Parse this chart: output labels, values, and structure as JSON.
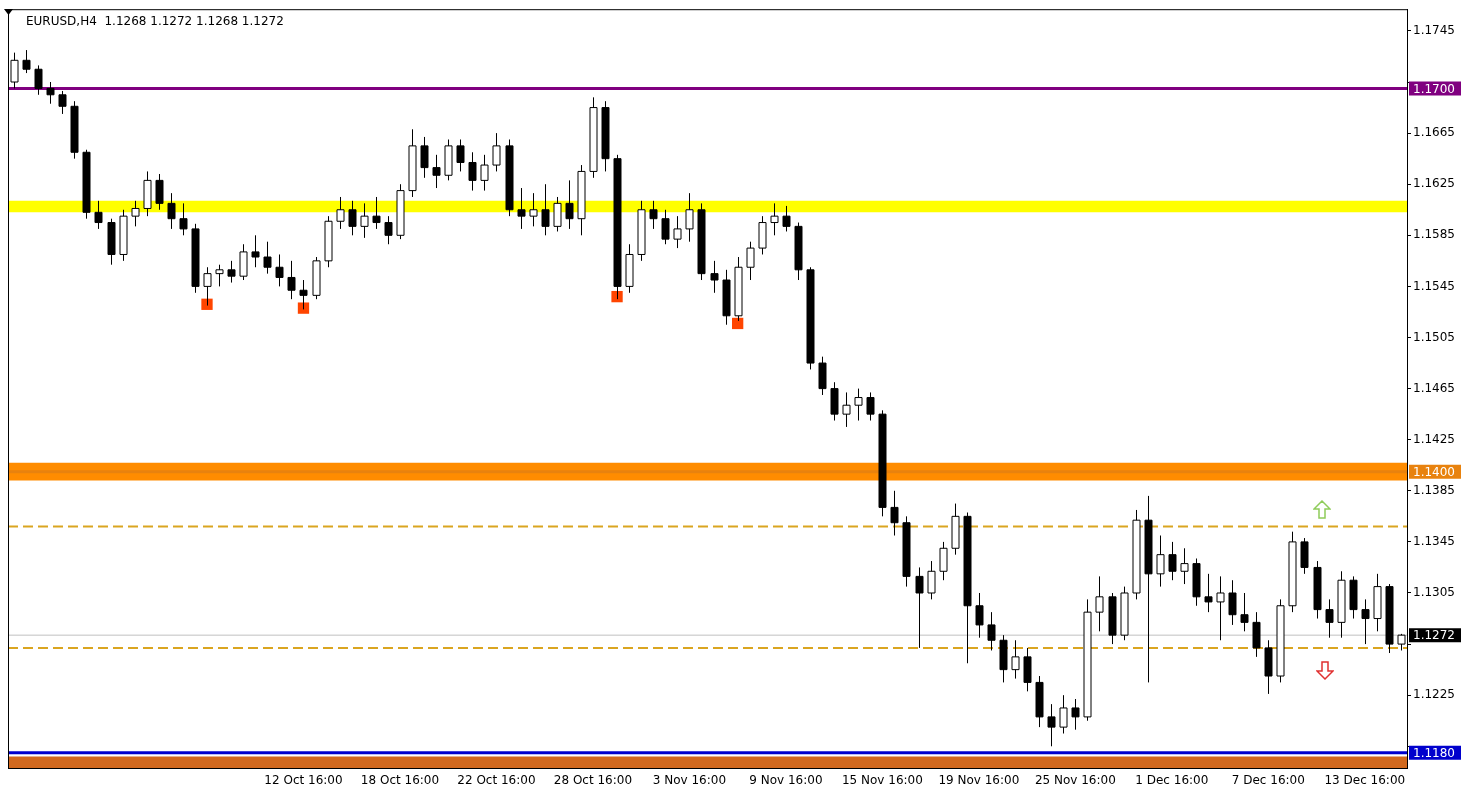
{
  "chart_data": {
    "type": "candlestick",
    "title": "EURUSD,H4  1.1268 1.1272 1.1268 1.1272",
    "categories": [
      null,
      null,
      null,
      null,
      null,
      null,
      null,
      null,
      null,
      null,
      null,
      null,
      null,
      null,
      null,
      null,
      null,
      null,
      null,
      null,
      null,
      null,
      null,
      null,
      "12 Oct 16:00",
      null,
      null,
      null,
      null,
      null,
      null,
      null,
      "18 Oct 16:00",
      null,
      null,
      null,
      null,
      null,
      null,
      null,
      "22 Oct 16:00",
      null,
      null,
      null,
      null,
      null,
      null,
      null,
      "28 Oct 16:00",
      null,
      null,
      null,
      null,
      null,
      null,
      null,
      "3 Nov 16:00",
      null,
      null,
      null,
      null,
      null,
      null,
      null,
      "9 Nov 16:00",
      null,
      null,
      null,
      null,
      null,
      null,
      null,
      "15 Nov 16:00",
      null,
      null,
      null,
      null,
      null,
      null,
      null,
      "19 Nov 16:00",
      null,
      null,
      null,
      null,
      null,
      null,
      null,
      "25 Nov 16:00",
      null,
      null,
      null,
      null,
      null,
      null,
      null,
      "1 Dec 16:00",
      null,
      null,
      null,
      null,
      null,
      null,
      null,
      "7 Dec 16:00",
      null,
      null,
      null,
      null,
      null,
      null,
      null,
      "13 Dec 16:00",
      null,
      null,
      null
    ],
    "series": [
      {
        "type": "scatter",
        "color": "#ff4500",
        "values": [
          null,
          null,
          null,
          null,
          null,
          null,
          null,
          null,
          null,
          null,
          null,
          null,
          null,
          null,
          null,
          null,
          1.1531,
          null,
          null,
          null,
          null,
          null,
          null,
          null,
          1.1528,
          null,
          null,
          null,
          null,
          null,
          null,
          null,
          null,
          null,
          null,
          null,
          null,
          null,
          null,
          null,
          null,
          null,
          null,
          null,
          null,
          null,
          null,
          null,
          null,
          null,
          1.1537,
          null,
          null,
          null,
          null,
          null,
          null,
          null,
          null,
          null,
          1.1516,
          null,
          null,
          null,
          null,
          null,
          null,
          null,
          null,
          null,
          null,
          null,
          null,
          null,
          null,
          null,
          null,
          null,
          null,
          null,
          null,
          null,
          null,
          null,
          null,
          null,
          null,
          null,
          null,
          null,
          null,
          null,
          null,
          null,
          null,
          null,
          null,
          null,
          null,
          null,
          null,
          null,
          null,
          null,
          null,
          null,
          null,
          null,
          null,
          null,
          null,
          null,
          null,
          null,
          null,
          null
        ]
      },
      {
        "color": "#000000",
        "colors": [
          "#ffffff",
          "#000000",
          "#000000",
          "#000000",
          "#000000",
          "#000000",
          "#000000",
          "#000000",
          "#000000",
          "#ffffff",
          "#ffffff",
          "#ffffff",
          "#000000",
          "#000000",
          "#000000",
          "#000000",
          "#ffffff",
          "#ffffff",
          "#000000",
          "#ffffff",
          "#000000",
          "#000000",
          "#000000",
          "#000000",
          "#000000",
          "#ffffff",
          "#ffffff",
          "#ffffff",
          "#000000",
          "#ffffff",
          "#000000",
          "#000000",
          "#ffffff",
          "#ffffff",
          "#000000",
          "#000000",
          "#ffffff",
          "#000000",
          "#000000",
          "#ffffff",
          "#ffffff",
          "#000000",
          "#000000",
          "#ffffff",
          "#000000",
          "#ffffff",
          "#000000",
          "#ffffff",
          "#ffffff",
          "#000000",
          "#000000",
          "#ffffff",
          "#ffffff",
          "#000000",
          "#000000",
          "#ffffff",
          "#ffffff",
          "#000000",
          "#000000",
          "#000000",
          "#ffffff",
          "#ffffff",
          "#ffffff",
          "#ffffff",
          "#000000",
          "#000000",
          "#000000",
          "#000000",
          "#000000",
          "#ffffff",
          "#ffffff",
          "#000000",
          "#000000",
          "#000000",
          "#000000",
          "#000000",
          "#ffffff",
          "#ffffff",
          "#ffffff",
          "#000000",
          "#000000",
          "#000000",
          "#000000",
          "#ffffff",
          "#000000",
          "#000000",
          "#000000",
          "#ffffff",
          "#000000",
          "#ffffff",
          "#ffffff",
          "#000000",
          "#ffffff",
          "#ffffff",
          "#000000",
          "#ffffff",
          "#000000",
          "#ffffff",
          "#000000",
          "#000000",
          "#ffffff",
          "#000000",
          "#000000",
          "#000000",
          "#000000",
          "#ffffff",
          "#ffffff",
          "#000000",
          "#000000",
          "#000000",
          "#ffffff",
          "#000000",
          "#000000",
          "#ffffff",
          "#000000",
          "#ffffff"
        ],
        "ohlc": [
          [
            1.1705,
            1.1728,
            1.17,
            1.1722
          ],
          [
            1.1722,
            1.173,
            1.1712,
            1.1715
          ],
          [
            1.1715,
            1.1718,
            1.1695,
            1.17
          ],
          [
            1.17,
            1.1705,
            1.1688,
            1.1695
          ],
          [
            1.1695,
            1.1698,
            1.168,
            1.1686
          ],
          [
            1.1686,
            1.169,
            1.1645,
            1.165
          ],
          [
            1.165,
            1.1652,
            1.1598,
            1.1603
          ],
          [
            1.1603,
            1.1612,
            1.159,
            1.1595
          ],
          [
            1.1595,
            1.1598,
            1.1562,
            1.157
          ],
          [
            1.157,
            1.1605,
            1.1565,
            1.16
          ],
          [
            1.16,
            1.1612,
            1.1592,
            1.1606
          ],
          [
            1.1606,
            1.1635,
            1.16,
            1.1628
          ],
          [
            1.1628,
            1.1633,
            1.1605,
            1.161
          ],
          [
            1.161,
            1.1618,
            1.159,
            1.1598
          ],
          [
            1.1598,
            1.161,
            1.1585,
            1.159
          ],
          [
            1.159,
            1.1594,
            1.154,
            1.1545
          ],
          [
            1.1545,
            1.156,
            1.153,
            1.1555
          ],
          [
            1.1555,
            1.1562,
            1.1545,
            1.1558
          ],
          [
            1.1558,
            1.1565,
            1.1548,
            1.1553
          ],
          [
            1.1553,
            1.1578,
            1.155,
            1.1572
          ],
          [
            1.1572,
            1.1585,
            1.156,
            1.1568
          ],
          [
            1.1568,
            1.158,
            1.1555,
            1.156
          ],
          [
            1.156,
            1.157,
            1.1545,
            1.1552
          ],
          [
            1.1552,
            1.1565,
            1.1535,
            1.1542
          ],
          [
            1.1542,
            1.155,
            1.1527,
            1.1538
          ],
          [
            1.1538,
            1.1568,
            1.1535,
            1.1565
          ],
          [
            1.1565,
            1.16,
            1.156,
            1.1596
          ],
          [
            1.1596,
            1.1615,
            1.159,
            1.1605
          ],
          [
            1.1605,
            1.1612,
            1.1585,
            1.1592
          ],
          [
            1.1592,
            1.161,
            1.1583,
            1.16
          ],
          [
            1.16,
            1.1615,
            1.159,
            1.1595
          ],
          [
            1.1595,
            1.16,
            1.1578,
            1.1585
          ],
          [
            1.1585,
            1.1625,
            1.1582,
            1.162
          ],
          [
            1.162,
            1.1668,
            1.1615,
            1.1655
          ],
          [
            1.1655,
            1.1662,
            1.163,
            1.1638
          ],
          [
            1.1638,
            1.1648,
            1.1622,
            1.1632
          ],
          [
            1.1632,
            1.166,
            1.1628,
            1.1655
          ],
          [
            1.1655,
            1.166,
            1.1635,
            1.1642
          ],
          [
            1.1642,
            1.165,
            1.162,
            1.1628
          ],
          [
            1.1628,
            1.1648,
            1.162,
            1.164
          ],
          [
            1.164,
            1.1665,
            1.1635,
            1.1655
          ],
          [
            1.1655,
            1.166,
            1.16,
            1.1605
          ],
          [
            1.1605,
            1.1622,
            1.159,
            1.16
          ],
          [
            1.16,
            1.1618,
            1.1592,
            1.1605
          ],
          [
            1.1605,
            1.1625,
            1.1585,
            1.1592
          ],
          [
            1.1592,
            1.1615,
            1.1588,
            1.161
          ],
          [
            1.161,
            1.1628,
            1.159,
            1.1598
          ],
          [
            1.1598,
            1.164,
            1.1585,
            1.1635
          ],
          [
            1.1635,
            1.1693,
            1.163,
            1.1685
          ],
          [
            1.1685,
            1.169,
            1.1635,
            1.1645
          ],
          [
            1.1645,
            1.1648,
            1.1535,
            1.1545
          ],
          [
            1.1545,
            1.1578,
            1.154,
            1.157
          ],
          [
            1.157,
            1.1612,
            1.1565,
            1.1605
          ],
          [
            1.1605,
            1.1612,
            1.159,
            1.1598
          ],
          [
            1.1598,
            1.1605,
            1.1578,
            1.1582
          ],
          [
            1.1582,
            1.16,
            1.1575,
            1.159
          ],
          [
            1.159,
            1.1618,
            1.158,
            1.1605
          ],
          [
            1.1605,
            1.161,
            1.155,
            1.1555
          ],
          [
            1.1555,
            1.1565,
            1.154,
            1.155
          ],
          [
            1.155,
            1.1558,
            1.1515,
            1.1522
          ],
          [
            1.1522,
            1.1568,
            1.1518,
            1.156
          ],
          [
            1.156,
            1.158,
            1.155,
            1.1575
          ],
          [
            1.1575,
            1.16,
            1.157,
            1.1595
          ],
          [
            1.1595,
            1.161,
            1.1585,
            1.16
          ],
          [
            1.16,
            1.1608,
            1.1588,
            1.1592
          ],
          [
            1.1592,
            1.1595,
            1.155,
            1.1558
          ],
          [
            1.1558,
            1.156,
            1.148,
            1.1485
          ],
          [
            1.1485,
            1.149,
            1.146,
            1.1465
          ],
          [
            1.1465,
            1.147,
            1.144,
            1.1445
          ],
          [
            1.1445,
            1.1462,
            1.1435,
            1.1452
          ],
          [
            1.1452,
            1.1465,
            1.144,
            1.1458
          ],
          [
            1.1458,
            1.1462,
            1.144,
            1.1445
          ],
          [
            1.1445,
            1.1448,
            1.1365,
            1.1372
          ],
          [
            1.1372,
            1.1385,
            1.135,
            1.136
          ],
          [
            1.136,
            1.1365,
            1.131,
            1.1318
          ],
          [
            1.1318,
            1.1325,
            1.1262,
            1.1305
          ],
          [
            1.1305,
            1.133,
            1.13,
            1.1322
          ],
          [
            1.1322,
            1.1345,
            1.1315,
            1.134
          ],
          [
            1.134,
            1.1375,
            1.1335,
            1.1365
          ],
          [
            1.1365,
            1.1368,
            1.125,
            1.1295
          ],
          [
            1.1295,
            1.1305,
            1.127,
            1.128
          ],
          [
            1.128,
            1.129,
            1.126,
            1.1268
          ],
          [
            1.1268,
            1.1272,
            1.1235,
            1.1245
          ],
          [
            1.1245,
            1.1268,
            1.1238,
            1.1255
          ],
          [
            1.1255,
            1.1262,
            1.1228,
            1.1235
          ],
          [
            1.1235,
            1.124,
            1.12,
            1.1208
          ],
          [
            1.1208,
            1.1218,
            1.1185,
            1.12
          ],
          [
            1.12,
            1.1225,
            1.1195,
            1.1215
          ],
          [
            1.1215,
            1.1222,
            1.1198,
            1.1208
          ],
          [
            1.1208,
            1.13,
            1.1205,
            1.129
          ],
          [
            1.129,
            1.1318,
            1.1275,
            1.1302
          ],
          [
            1.1302,
            1.1305,
            1.1265,
            1.1272
          ],
          [
            1.1272,
            1.131,
            1.1268,
            1.1305
          ],
          [
            1.1305,
            1.137,
            1.13,
            1.1362
          ],
          [
            1.1362,
            1.1381,
            1.1235,
            1.132
          ],
          [
            1.132,
            1.135,
            1.131,
            1.1335
          ],
          [
            1.1335,
            1.1345,
            1.1315,
            1.1322
          ],
          [
            1.1322,
            1.134,
            1.1312,
            1.1328
          ],
          [
            1.1328,
            1.1332,
            1.1295,
            1.1302
          ],
          [
            1.1302,
            1.132,
            1.129,
            1.1298
          ],
          [
            1.1298,
            1.1318,
            1.1268,
            1.1305
          ],
          [
            1.1305,
            1.1315,
            1.128,
            1.1288
          ],
          [
            1.1288,
            1.1305,
            1.1275,
            1.1282
          ],
          [
            1.1282,
            1.129,
            1.1255,
            1.1262
          ],
          [
            1.1262,
            1.1268,
            1.1226,
            1.124
          ],
          [
            1.124,
            1.13,
            1.1235,
            1.1295
          ],
          [
            1.1295,
            1.1353,
            1.129,
            1.1345
          ],
          [
            1.1345,
            1.1348,
            1.132,
            1.1325
          ],
          [
            1.1325,
            1.133,
            1.1285,
            1.1292
          ],
          [
            1.1292,
            1.13,
            1.127,
            1.1282
          ],
          [
            1.1282,
            1.1322,
            1.127,
            1.1315
          ],
          [
            1.1315,
            1.1318,
            1.1285,
            1.1292
          ],
          [
            1.1292,
            1.13,
            1.1265,
            1.1285
          ],
          [
            1.1285,
            1.132,
            1.1275,
            1.131
          ],
          [
            1.131,
            1.1312,
            1.1258,
            1.1265
          ],
          [
            1.1265,
            1.1273,
            1.126,
            1.1272
          ]
        ]
      }
    ],
    "marker": "square",
    "ylim": [
      1.1168,
      1.1762
    ],
    "yticks": [
      1.1745,
      {
        "value": 1.1705,
        "label": null
      },
      1.1665,
      1.1625,
      1.1585,
      1.1545,
      1.1505,
      1.1465,
      1.1425,
      1.1385,
      1.1345,
      1.1305,
      {
        "value": 1.1265,
        "label": null
      },
      1.1225,
      {
        "value": 1.1185,
        "label": null
      }
    ],
    "ref_lines": [
      {
        "axis": "y",
        "value": 1.17,
        "label": "1.1700",
        "color": "#800080"
      },
      {
        "axis": "y",
        "value": 1.14,
        "label": "1.1400",
        "color": "#e8820e"
      },
      {
        "axis": "y",
        "value": 1.118,
        "label": "1.1180",
        "color": "#0000cd"
      },
      {
        "axis": "y",
        "value": 1.1272,
        "label": "1.1272",
        "color": "#c0c0c0"
      },
      {
        "axis": "y",
        "value": 1.1357,
        "label": null,
        "color": "#daa520",
        "line_style": "dashed"
      },
      {
        "axis": "y",
        "value": 1.1262,
        "label": null,
        "color": "#daa520",
        "line_style": "dashed"
      }
    ],
    "bands": [
      {
        "axis": "y",
        "from": 1.1603,
        "to": 1.1612,
        "label": null,
        "color": "#ffff00"
      },
      {
        "axis": "y",
        "from": 1.1393,
        "to": 1.1407,
        "label": null,
        "color": "#ff8c00"
      },
      {
        "axis": "y",
        "from": 1.1168,
        "to": 1.1177,
        "label": null,
        "color": "#d2691e"
      }
    ]
  }
}
